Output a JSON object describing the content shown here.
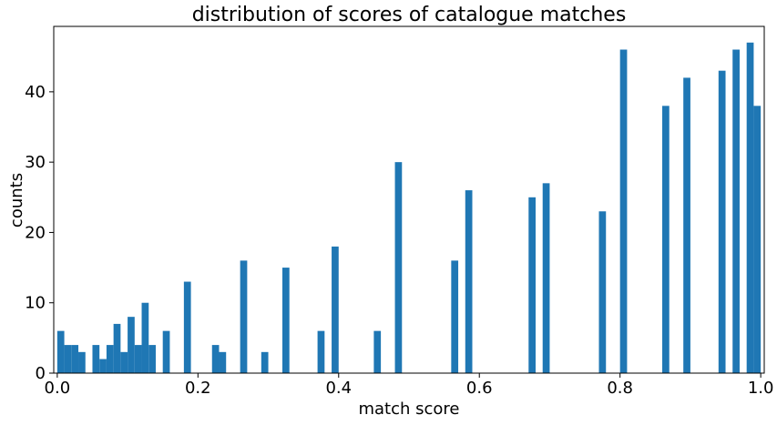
{
  "chart_data": {
    "type": "bar",
    "title": "distribution of scores of catalogue matches",
    "xlabel": "match score",
    "ylabel": "counts",
    "xlim": [
      -0.005,
      1.005
    ],
    "ylim": [
      0,
      49.3
    ],
    "bin_width": 0.01,
    "color": "#1f77b4",
    "grid": false,
    "xticks": [
      0.0,
      0.2,
      0.4,
      0.6,
      0.8,
      1.0
    ],
    "xtick_labels": [
      "0.0",
      "0.2",
      "0.4",
      "0.6",
      "0.8",
      "1.0"
    ],
    "yticks": [
      0,
      10,
      20,
      30,
      40
    ],
    "ytick_labels": [
      "0",
      "10",
      "20",
      "30",
      "40"
    ],
    "bins": [
      {
        "x": 0.0,
        "count": 6
      },
      {
        "x": 0.01,
        "count": 4
      },
      {
        "x": 0.02,
        "count": 4
      },
      {
        "x": 0.03,
        "count": 3
      },
      {
        "x": 0.05,
        "count": 4
      },
      {
        "x": 0.06,
        "count": 2
      },
      {
        "x": 0.07,
        "count": 4
      },
      {
        "x": 0.08,
        "count": 7
      },
      {
        "x": 0.09,
        "count": 3
      },
      {
        "x": 0.1,
        "count": 8
      },
      {
        "x": 0.11,
        "count": 4
      },
      {
        "x": 0.12,
        "count": 10
      },
      {
        "x": 0.13,
        "count": 4
      },
      {
        "x": 0.15,
        "count": 6
      },
      {
        "x": 0.18,
        "count": 13
      },
      {
        "x": 0.22,
        "count": 4
      },
      {
        "x": 0.23,
        "count": 3
      },
      {
        "x": 0.26,
        "count": 16
      },
      {
        "x": 0.29,
        "count": 3
      },
      {
        "x": 0.32,
        "count": 15
      },
      {
        "x": 0.37,
        "count": 6
      },
      {
        "x": 0.39,
        "count": 18
      },
      {
        "x": 0.45,
        "count": 6
      },
      {
        "x": 0.48,
        "count": 30
      },
      {
        "x": 0.56,
        "count": 16
      },
      {
        "x": 0.58,
        "count": 26
      },
      {
        "x": 0.67,
        "count": 25
      },
      {
        "x": 0.69,
        "count": 27
      },
      {
        "x": 0.77,
        "count": 23
      },
      {
        "x": 0.8,
        "count": 46
      },
      {
        "x": 0.86,
        "count": 38
      },
      {
        "x": 0.89,
        "count": 42
      },
      {
        "x": 0.94,
        "count": 43
      },
      {
        "x": 0.96,
        "count": 46
      },
      {
        "x": 0.98,
        "count": 47
      },
      {
        "x": 0.99,
        "count": 38
      }
    ]
  }
}
